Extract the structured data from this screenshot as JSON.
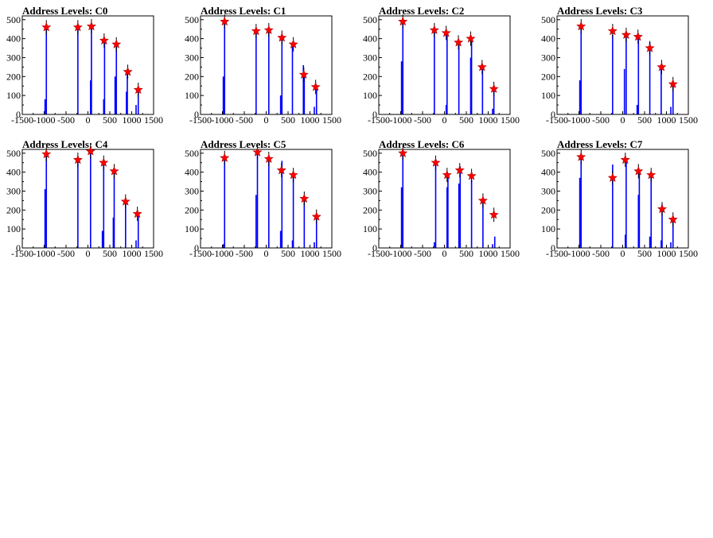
{
  "style": {
    "bar_color": "#0000ff",
    "marker_color": "#ff0000",
    "marker_shape": "star",
    "background": "#ffffff"
  },
  "chart_data": [
    {
      "type": "bar",
      "title": "Address Levels: C0",
      "xlim": [
        -1500,
        1500
      ],
      "ylim": [
        0,
        520
      ],
      "xticks": [
        "-1500",
        "-1000",
        "-500",
        "0",
        "500",
        "1000",
        "1500"
      ],
      "yticks": [
        "0",
        "100",
        "200",
        "300",
        "400",
        "500"
      ],
      "values": [
        {
          "x": -980,
          "y": 80
        },
        {
          "x": -950,
          "y": 460
        },
        {
          "x": -230,
          "y": 450
        },
        {
          "x": 60,
          "y": 180
        },
        {
          "x": 80,
          "y": 460
        },
        {
          "x": 360,
          "y": 80
        },
        {
          "x": 380,
          "y": 380
        },
        {
          "x": 620,
          "y": 200
        },
        {
          "x": 650,
          "y": 370
        },
        {
          "x": 880,
          "y": 120
        },
        {
          "x": 900,
          "y": 220
        },
        {
          "x": 1100,
          "y": 50
        },
        {
          "x": 1150,
          "y": 130
        }
      ],
      "peaks": [
        {
          "x": -950,
          "y": 460
        },
        {
          "x": -230,
          "y": 460
        },
        {
          "x": 80,
          "y": 465
        },
        {
          "x": 370,
          "y": 390
        },
        {
          "x": 650,
          "y": 370
        },
        {
          "x": 910,
          "y": 225
        },
        {
          "x": 1150,
          "y": 130
        }
      ]
    },
    {
      "type": "bar",
      "title": "Address Levels: C1",
      "xlim": [
        -1500,
        1500
      ],
      "ylim": [
        0,
        520
      ],
      "xticks": [
        "-1500",
        "-1000",
        "-500",
        "0",
        "500",
        "1000",
        "1500"
      ],
      "yticks": [
        "0",
        "100",
        "200",
        "300",
        "400",
        "500"
      ],
      "values": [
        {
          "x": -980,
          "y": 200
        },
        {
          "x": -950,
          "y": 490
        },
        {
          "x": -230,
          "y": 430
        },
        {
          "x": 60,
          "y": 440
        },
        {
          "x": 330,
          "y": 100
        },
        {
          "x": 360,
          "y": 400
        },
        {
          "x": 600,
          "y": 370
        },
        {
          "x": 850,
          "y": 260
        },
        {
          "x": 870,
          "y": 200
        },
        {
          "x": 1100,
          "y": 40
        },
        {
          "x": 1150,
          "y": 150
        }
      ],
      "peaks": [
        {
          "x": -950,
          "y": 490
        },
        {
          "x": -230,
          "y": 440
        },
        {
          "x": 60,
          "y": 445
        },
        {
          "x": 360,
          "y": 405
        },
        {
          "x": 620,
          "y": 370
        },
        {
          "x": 860,
          "y": 210
        },
        {
          "x": 1130,
          "y": 145
        }
      ]
    },
    {
      "type": "bar",
      "title": "Address Levels: C2",
      "xlim": [
        -1500,
        1500
      ],
      "ylim": [
        0,
        520
      ],
      "xticks": [
        "-1500",
        "-1000",
        "-500",
        "0",
        "500",
        "1000",
        "1500"
      ],
      "yticks": [
        "0",
        "100",
        "200",
        "300",
        "400",
        "500"
      ],
      "values": [
        {
          "x": -980,
          "y": 280
        },
        {
          "x": -950,
          "y": 490
        },
        {
          "x": -230,
          "y": 440
        },
        {
          "x": 40,
          "y": 50
        },
        {
          "x": 60,
          "y": 420
        },
        {
          "x": 330,
          "y": 380
        },
        {
          "x": 600,
          "y": 300
        },
        {
          "x": 620,
          "y": 390
        },
        {
          "x": 870,
          "y": 250
        },
        {
          "x": 1100,
          "y": 30
        },
        {
          "x": 1130,
          "y": 130
        }
      ],
      "peaks": [
        {
          "x": -950,
          "y": 490
        },
        {
          "x": -230,
          "y": 445
        },
        {
          "x": 40,
          "y": 430
        },
        {
          "x": 320,
          "y": 380
        },
        {
          "x": 600,
          "y": 400
        },
        {
          "x": 860,
          "y": 250
        },
        {
          "x": 1130,
          "y": 135
        }
      ]
    },
    {
      "type": "bar",
      "title": "Address Levels: C3",
      "xlim": [
        -1500,
        1500
      ],
      "ylim": [
        0,
        520
      ],
      "xticks": [
        "-1500",
        "-1000",
        "-500",
        "0",
        "500",
        "1000",
        "1500"
      ],
      "yticks": [
        "0",
        "100",
        "200",
        "300",
        "400",
        "500"
      ],
      "values": [
        {
          "x": -980,
          "y": 180
        },
        {
          "x": -950,
          "y": 465
        },
        {
          "x": -230,
          "y": 420
        },
        {
          "x": 40,
          "y": 240
        },
        {
          "x": 80,
          "y": 410
        },
        {
          "x": 330,
          "y": 50
        },
        {
          "x": 360,
          "y": 400
        },
        {
          "x": 620,
          "y": 380
        },
        {
          "x": 880,
          "y": 240
        },
        {
          "x": 1100,
          "y": 40
        },
        {
          "x": 1150,
          "y": 160
        }
      ],
      "peaks": [
        {
          "x": -950,
          "y": 465
        },
        {
          "x": -230,
          "y": 440
        },
        {
          "x": 80,
          "y": 420
        },
        {
          "x": 350,
          "y": 410
        },
        {
          "x": 620,
          "y": 350
        },
        {
          "x": 890,
          "y": 250
        },
        {
          "x": 1150,
          "y": 160
        }
      ]
    },
    {
      "type": "bar",
      "title": "Address Levels: C4",
      "xlim": [
        -1500,
        1500
      ],
      "ylim": [
        0,
        520
      ],
      "xticks": [
        "-1500",
        "-1000",
        "-500",
        "0",
        "500",
        "1000",
        "1500"
      ],
      "yticks": [
        "0",
        "100",
        "200",
        "300",
        "400",
        "500"
      ],
      "values": [
        {
          "x": -980,
          "y": 310
        },
        {
          "x": -950,
          "y": 490
        },
        {
          "x": -230,
          "y": 460
        },
        {
          "x": 60,
          "y": 500
        },
        {
          "x": 330,
          "y": 90
        },
        {
          "x": 360,
          "y": 440
        },
        {
          "x": 580,
          "y": 160
        },
        {
          "x": 600,
          "y": 400
        },
        {
          "x": 860,
          "y": 250
        },
        {
          "x": 1100,
          "y": 40
        },
        {
          "x": 1150,
          "y": 170
        }
      ],
      "peaks": [
        {
          "x": -950,
          "y": 495
        },
        {
          "x": -230,
          "y": 465
        },
        {
          "x": 60,
          "y": 510
        },
        {
          "x": 360,
          "y": 450
        },
        {
          "x": 600,
          "y": 405
        },
        {
          "x": 860,
          "y": 245
        },
        {
          "x": 1130,
          "y": 180
        }
      ]
    },
    {
      "type": "bar",
      "title": "Address Levels: C5",
      "xlim": [
        -1500,
        1500
      ],
      "ylim": [
        0,
        520
      ],
      "xticks": [
        "-1500",
        "-1000",
        "-500",
        "0",
        "500",
        "1000",
        "1500"
      ],
      "yticks": [
        "0",
        "100",
        "200",
        "300",
        "400",
        "500"
      ],
      "values": [
        {
          "x": -980,
          "y": 20
        },
        {
          "x": -950,
          "y": 480
        },
        {
          "x": -230,
          "y": 280
        },
        {
          "x": -200,
          "y": 500
        },
        {
          "x": 60,
          "y": 460
        },
        {
          "x": 330,
          "y": 90
        },
        {
          "x": 360,
          "y": 460
        },
        {
          "x": 600,
          "y": 40
        },
        {
          "x": 620,
          "y": 380
        },
        {
          "x": 870,
          "y": 270
        },
        {
          "x": 1100,
          "y": 30
        },
        {
          "x": 1150,
          "y": 170
        }
      ],
      "peaks": [
        {
          "x": -950,
          "y": 475
        },
        {
          "x": -200,
          "y": 505
        },
        {
          "x": 60,
          "y": 470
        },
        {
          "x": 350,
          "y": 410
        },
        {
          "x": 620,
          "y": 385
        },
        {
          "x": 870,
          "y": 260
        },
        {
          "x": 1150,
          "y": 165
        }
      ]
    },
    {
      "type": "bar",
      "title": "Address Levels: C6",
      "xlim": [
        -1500,
        1500
      ],
      "ylim": [
        0,
        520
      ],
      "xticks": [
        "-1500",
        "-1000",
        "-500",
        "0",
        "500",
        "1000",
        "1500"
      ],
      "yticks": [
        "0",
        "100",
        "200",
        "300",
        "400",
        "500"
      ],
      "values": [
        {
          "x": -980,
          "y": 320
        },
        {
          "x": -950,
          "y": 500
        },
        {
          "x": -230,
          "y": 30
        },
        {
          "x": -200,
          "y": 450
        },
        {
          "x": 60,
          "y": 320
        },
        {
          "x": 80,
          "y": 390
        },
        {
          "x": 330,
          "y": 340
        },
        {
          "x": 360,
          "y": 430
        },
        {
          "x": 620,
          "y": 360
        },
        {
          "x": 880,
          "y": 240
        },
        {
          "x": 1100,
          "y": 20
        },
        {
          "x": 1150,
          "y": 60
        }
      ],
      "peaks": [
        {
          "x": -950,
          "y": 500
        },
        {
          "x": -200,
          "y": 450
        },
        {
          "x": 60,
          "y": 385
        },
        {
          "x": 350,
          "y": 410
        },
        {
          "x": 620,
          "y": 380
        },
        {
          "x": 880,
          "y": 250
        },
        {
          "x": 1130,
          "y": 175
        }
      ]
    },
    {
      "type": "bar",
      "title": "Address Levels: C7",
      "xlim": [
        -1500,
        1500
      ],
      "ylim": [
        0,
        520
      ],
      "xticks": [
        "-1500",
        "-1000",
        "-500",
        "0",
        "500",
        "1000",
        "1500"
      ],
      "yticks": [
        "0",
        "100",
        "200",
        "300",
        "400",
        "500"
      ],
      "values": [
        {
          "x": -980,
          "y": 370
        },
        {
          "x": -950,
          "y": 480
        },
        {
          "x": -230,
          "y": 440
        },
        {
          "x": 60,
          "y": 70
        },
        {
          "x": 80,
          "y": 460
        },
        {
          "x": 360,
          "y": 280
        },
        {
          "x": 380,
          "y": 410
        },
        {
          "x": 620,
          "y": 60
        },
        {
          "x": 650,
          "y": 380
        },
        {
          "x": 880,
          "y": 40
        },
        {
          "x": 900,
          "y": 230
        },
        {
          "x": 1100,
          "y": 30
        },
        {
          "x": 1150,
          "y": 160
        }
      ],
      "peaks": [
        {
          "x": -950,
          "y": 480
        },
        {
          "x": -230,
          "y": 370
        },
        {
          "x": 60,
          "y": 465
        },
        {
          "x": 360,
          "y": 405
        },
        {
          "x": 650,
          "y": 385
        },
        {
          "x": 900,
          "y": 205
        },
        {
          "x": 1150,
          "y": 150
        }
      ]
    }
  ]
}
